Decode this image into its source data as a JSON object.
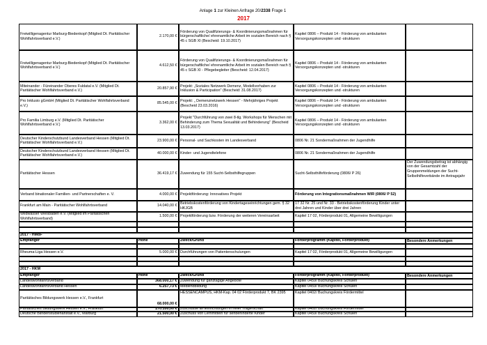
{
  "header": {
    "title": [
      "Anlage",
      "1",
      "zur Kleinen Anfrage 20/",
      "2338",
      "Frage 1"
    ],
    "year": "2017"
  },
  "sections": [
    {
      "rows": [
        [
          "Freiwilligenagentur Marburg-Biedenkopf (Mitglied Dt. Paritätischer Wohlfahrtsverband e.V.)",
          "2.170,00 €",
          "Förderung von Qualifizierungs- & Koordinierungsmaßnahmen für bürgerschaftliche/ ehrenamtliche Arbeit im sozialen Bereich nach § 45 c SGB XI (Bescheid: 19.10.2017)",
          "Kapitel 0806 – Produkt 14 - Förderung von ambulanten Versorgungskonzepten und -strukturen",
          null
        ],
        [
          "Freiwilligenagentur Marburg-Biedenkopf (Mitglied Dt. Paritätischer Wohlfahrtsverband e.V.)",
          "4.612,50 €",
          "Förderung von Qualifizierungs- & Koordinierungsmaßnahmen für bürgerschaftliche/ ehrenamtliche Arbeit im sozialen Bereich nach § 45 c SGB XI - Pflegebegleiter (Bescheid: 12.04.2017)",
          "Kapitel 0806 – Produkt 14 - Förderung von ambulanten Versorgungskonzepten und -strukturen",
          null
        ],
        [
          "Miteinander - Füreinander Oberes Fuldatal e.V. (Mitglied Dt. Paritätischer Wohlfahrtsverband e.V.)",
          "20.857,90 €",
          "Projekt: „Soziales Netzwerk Demenz, Modellvorhaben zur Inklusion & Participation\" (Bescheid: 31.08.2017)",
          "Kapitel 0806 – Produkt 14 - Förderung von ambulanten Versorgungskonzepten und -strukturen",
          null
        ],
        [
          "Pro Inklusio gGmbH (Mitglied Dt. Paritätischer Wohlfahrtsverband e.V.)",
          "85.545,00 €",
          "Projekt: „ Demenznetzwerk Hessen\" - Mehrjähriges Projekt (Bescheid 23.03.2016)",
          "Kapitel 0806 – Produkt 14 - Förderung von ambulanten Versorgungskonzepten und -strukturen",
          null
        ],
        [
          "Pro Familia Limburg e.V. (Mitglied Dt. Paritätischer Wohlfahrtsverband e.V.)",
          "3.362,00 €",
          "Projekt \"Durchführung von zwei 8-tlg. Workshops für Menschen mit Behinderung zum Thema Sexualität und Behinderung\" (Bescheid 13.03.2017)",
          "Kapitel 0806 – Produkt 14 - Förderung von ambulanten Versorgungskonzepten und -strukturen",
          null
        ],
        [
          "Deutscher Kinderschutzbund Landesverband Hessen (Mitglied Dt. Paritätischer Wohlfahrtsverband e.V.)",
          "23.900,00 €",
          "Personal- und Sachkosten im Landesverband",
          "0806 Nr. 21  Sondermaßnahmen der  Jugendhilfe",
          null
        ],
        [
          "Deutscher Kinderschutzbund Landesverband Hessen (Mitglied Dt. Paritätischer Wohlfahrtsverband e.V.)",
          "40.000,00 €",
          "Kinder- und Jugendtelefone",
          "0806 Nr. 21  Sondermaßnahmen der  Jugendhilfe",
          null
        ],
        [
          "Paritätischer Hessen",
          "36.419,17 €",
          "Zuwendung für 155 Sucht-Selbsthilfegruppen",
          "Sucht-Selbsthilfeförderung  (0806/ P 26)",
          "Der Zuwendungsbetrag ist abhängig von der Gesamtzahl der Gruppenmeldungen der Sucht-Selbsthilfeverbände im Antragsjahr"
        ],
        [
          "Verband binationaler Familien- und Partnerschaften e. V.",
          "4.000,00 €",
          "Projektförderung: Innovatives Projekt",
          "Förderung von Integrationsmaßnahmen WIR  (0806/ P 52)",
          null
        ],
        [
          "Frankfurt am Main - Paritätischer Wohlfahrtsverband",
          "14.040,00 €",
          "Betriebskostenförderung von Kindertageseinrichtungen gem. § 32 HKJGB",
          "17 32 Nr. 25 und Nr. 33 - Betriebskostenförderung Kinder unter drei Jahren und Kinder über drei Jahren",
          null
        ],
        [
          "Wildwasser Wiesbaden e.V. (Mitglied im Paritätischen Wohlfahrtsverband)",
          "1.500,00 €",
          "Projektförderung bzw. Förderung der weiteren Vereinsarbeit",
          "Kapitel 17 02, Förderprodukt 01, Allgemeine Bewilligungen",
          null
        ]
      ]
    },
    {
      "label": "2017 - HMdF",
      "columns": [
        "Empfänger",
        "Höhe",
        "Zweck/Grund",
        "Förderprogramm (Kapitel, Förderprodukt)",
        "Besondere Anmerkungen"
      ],
      "rows": [
        [
          "Rheuma-Liga Hessen e.V.",
          "5.000,00 €",
          "Durchführungen von Patientenschulungen",
          "Kapitel 17 02, Förderprodukt 01, Allgemeine Bewilligungen",
          null
        ]
      ]
    },
    {
      "label": "2017 - HKM",
      "columns": [
        "Empfänger",
        "Höhe",
        "Zweck/Grund",
        "Förderprogramm (Kapitel, Förderprodukt)",
        "Besondere Anmerkungen"
      ],
      "rows": [
        [
          "Landeswohlfahrtsverband",
          "368.000,17 €",
          "Zuwendung für ganztägige Angebote",
          "Kapitel 0459/ Buchungskreis Schulen",
          null
        ],
        [
          "Landeswohlfahrtsverband Hessen",
          "6.257,73 €",
          "Mediendbildung",
          "Kapitel 0459/ Buchungskreis Schulen",
          null
        ],
        [
          "Paritätisches Bildungswerk Hessen e.V., Frankfurt",
          "68.000,00 €",
          "HESSENCAMPUS, HKM-Kap. 04 02  Förderprodukt 7, BK 2395",
          "Kapitel 0402/ Buchungskreis Fördermittel",
          null
        ],
        [
          "Paritätisches Bildungswerk Hessen e.V., Frankfurt",
          "170.100,00 €",
          "Zuschüsse an Einrichtungen in freier Trägerschaft",
          "Kapitel 0402/ Buchungskreis Fördermittel",
          null
        ],
        [
          "Deutsche Blindenstudienanstalt e.V.,  Marburg",
          "21.500,00 €",
          "Zuschuss von Lernmitteln für sehbehinderte Kinder",
          "Kapitel 0459/ Buchungskreis Schulen",
          null
        ]
      ]
    }
  ]
}
